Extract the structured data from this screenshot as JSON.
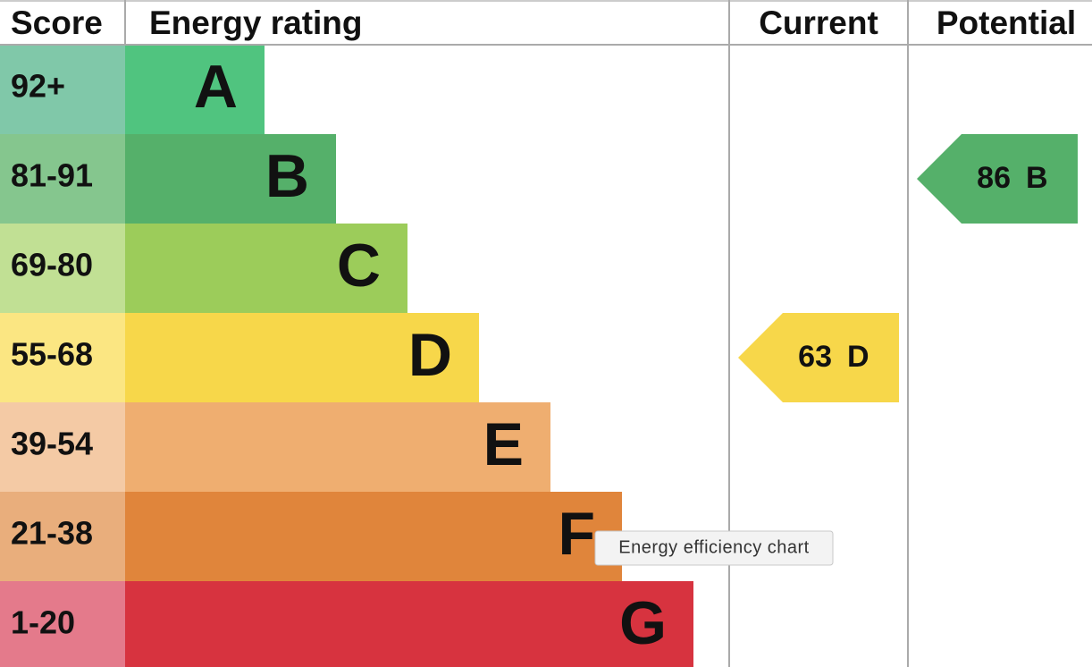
{
  "header": {
    "score": "Score",
    "rating": "Energy rating",
    "current": "Current",
    "potential": "Potential"
  },
  "bands": [
    {
      "score": "92+",
      "letter": "A",
      "color": "#50c47f",
      "score_color": "#80c8a9"
    },
    {
      "score": "81-91",
      "letter": "B",
      "color": "#55b06a",
      "score_color": "#85c68e"
    },
    {
      "score": "69-80",
      "letter": "C",
      "color": "#9ccc5a",
      "score_color": "#c1e094"
    },
    {
      "score": "55-68",
      "letter": "D",
      "color": "#f7d74a",
      "score_color": "#fbe682"
    },
    {
      "score": "39-54",
      "letter": "E",
      "color": "#efae70",
      "score_color": "#f4caa5"
    },
    {
      "score": "21-38",
      "letter": "F",
      "color": "#e0853b",
      "score_color": "#e9ae7c"
    },
    {
      "score": "1-20",
      "letter": "G",
      "color": "#d7333f",
      "score_color": "#e47a8b"
    }
  ],
  "current": {
    "value": "63",
    "letter": "D"
  },
  "potential": {
    "value": "86",
    "letter": "B"
  },
  "tooltip": "Energy efficiency chart"
}
